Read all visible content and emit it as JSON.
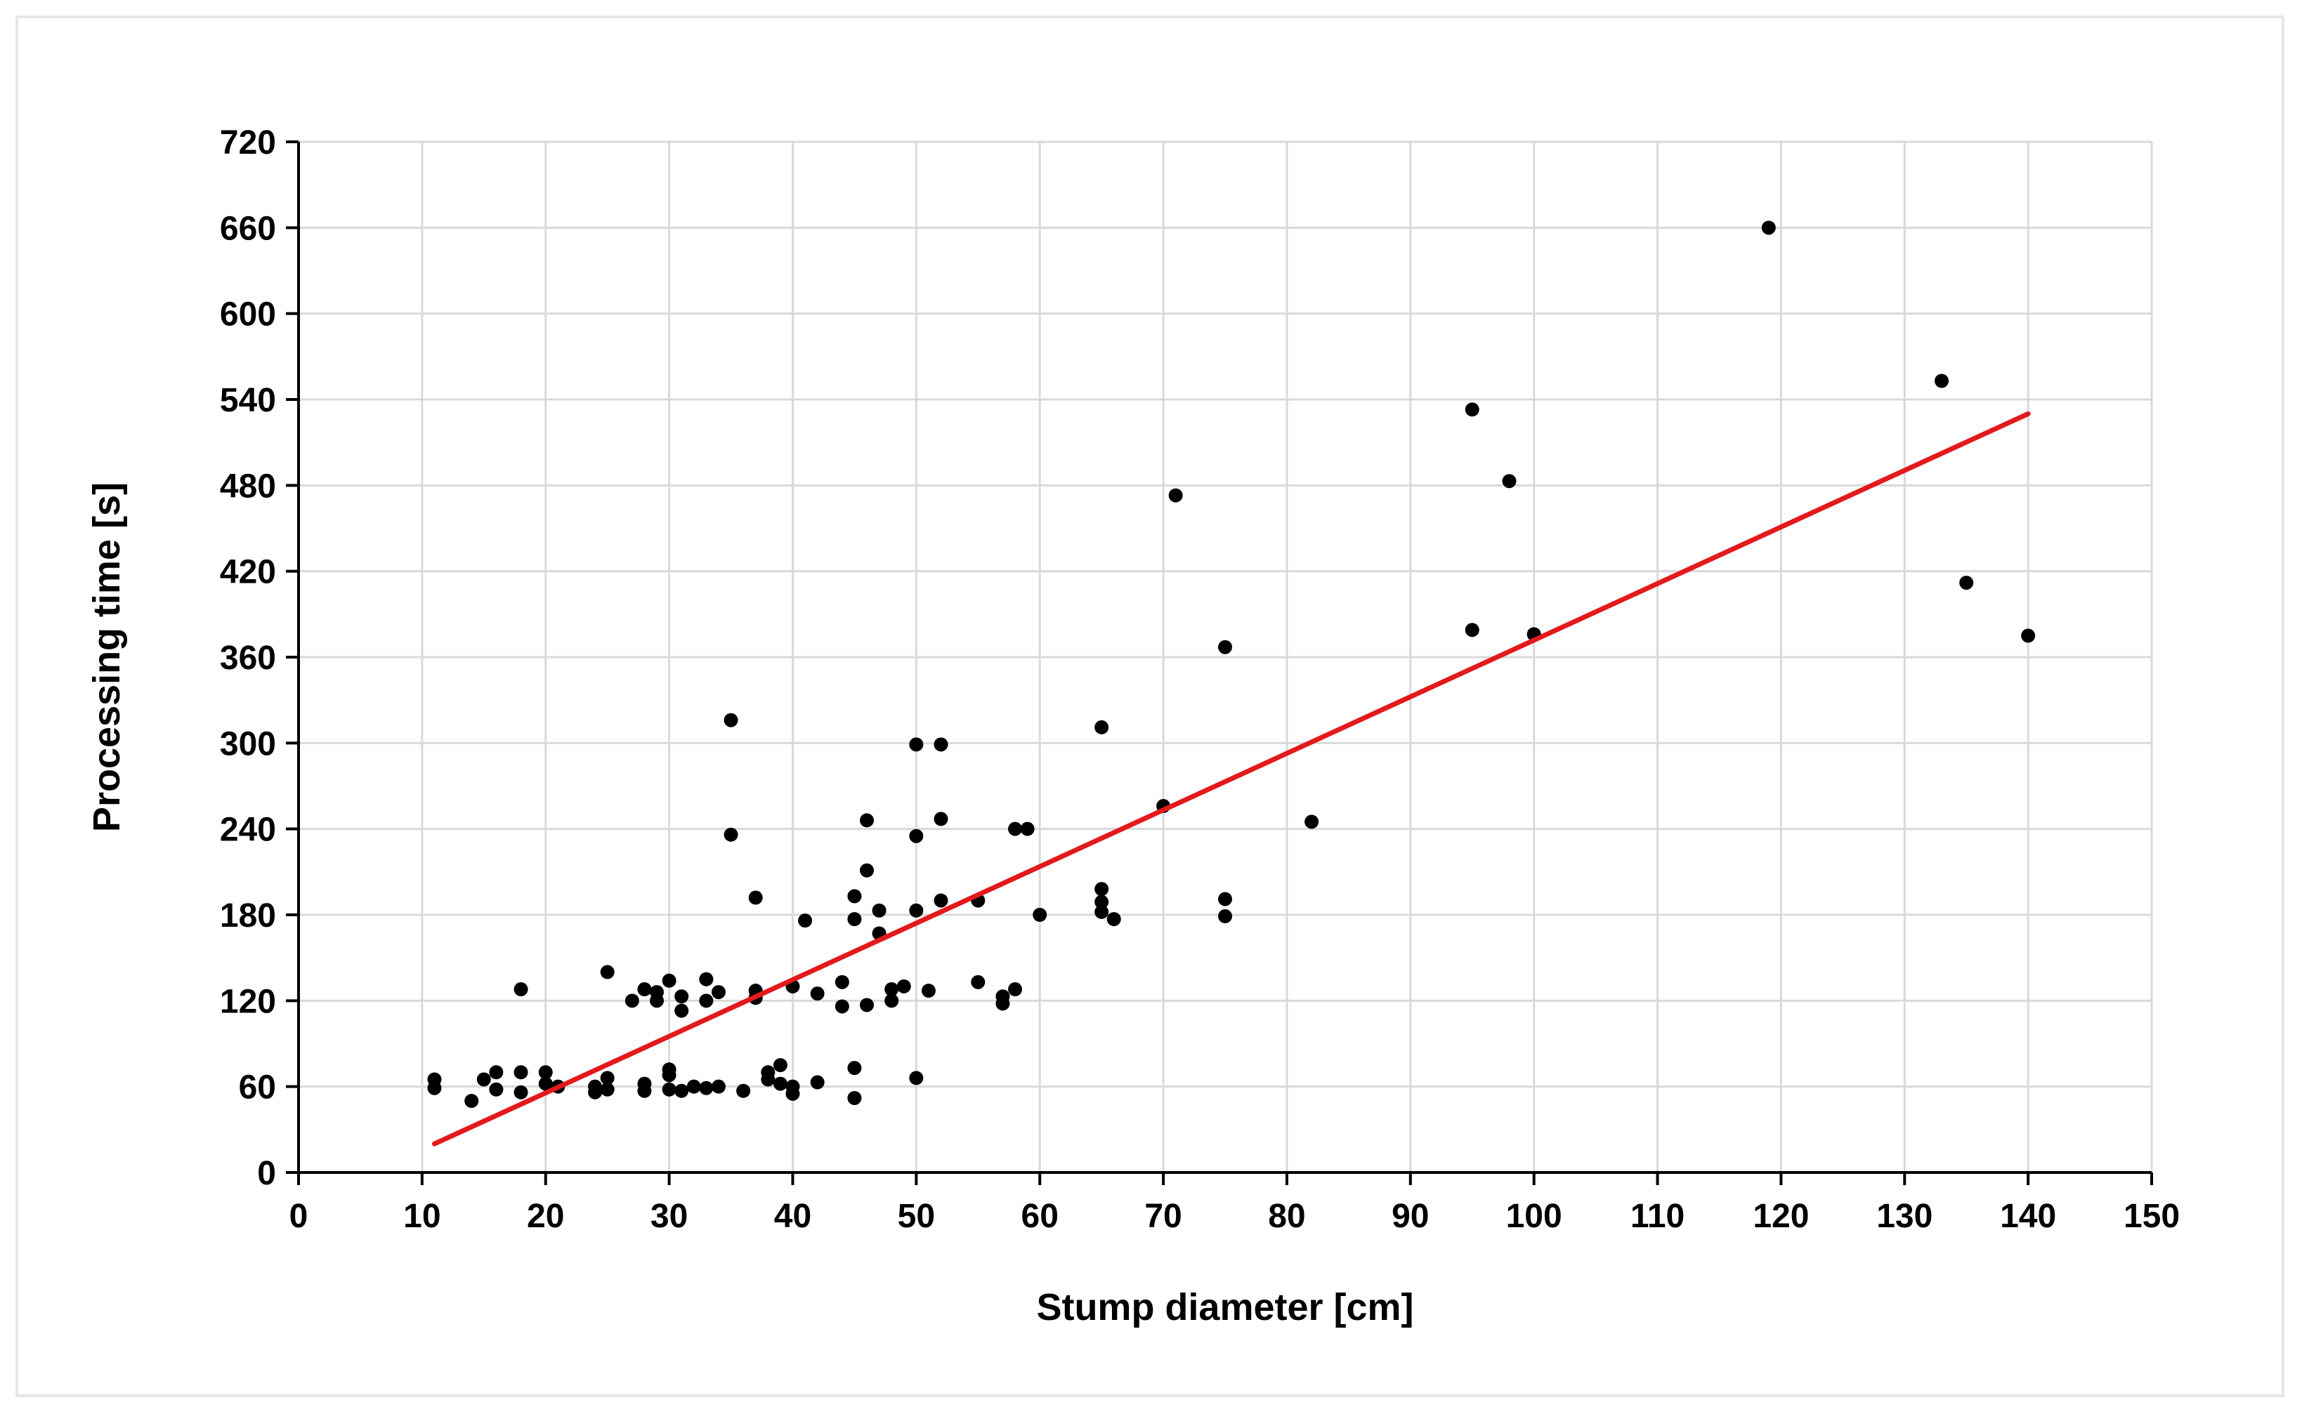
{
  "chart_data": {
    "type": "scatter",
    "title": "",
    "xlabel": "Stump diameter [cm]",
    "ylabel": "Processing time [s]",
    "xlim": [
      0,
      150
    ],
    "ylim": [
      0,
      720
    ],
    "x_ticks": [
      0,
      10,
      20,
      30,
      40,
      50,
      60,
      70,
      80,
      90,
      100,
      110,
      120,
      130,
      140,
      150
    ],
    "y_ticks": [
      0,
      60,
      120,
      180,
      240,
      300,
      360,
      420,
      480,
      540,
      600,
      660,
      720
    ],
    "grid": true,
    "legend": "none",
    "colors": {
      "points": "#000000",
      "trendline": "#e3191c",
      "grid": "#d9d9d9",
      "axis": "#000000"
    },
    "points": [
      [
        11,
        65
      ],
      [
        11,
        59
      ],
      [
        14,
        50
      ],
      [
        15,
        65
      ],
      [
        16,
        70
      ],
      [
        16,
        58
      ],
      [
        18,
        128
      ],
      [
        18,
        70
      ],
      [
        18,
        56
      ],
      [
        20,
        70
      ],
      [
        20,
        62
      ],
      [
        21,
        60
      ],
      [
        24,
        60
      ],
      [
        24,
        56
      ],
      [
        25,
        140
      ],
      [
        25,
        66
      ],
      [
        25,
        58
      ],
      [
        27,
        120
      ],
      [
        28,
        128
      ],
      [
        28,
        62
      ],
      [
        28,
        57
      ],
      [
        29,
        126
      ],
      [
        29,
        120
      ],
      [
        30,
        134
      ],
      [
        30,
        72
      ],
      [
        30,
        68
      ],
      [
        30,
        58
      ],
      [
        31,
        123
      ],
      [
        31,
        113
      ],
      [
        31,
        57
      ],
      [
        32,
        60
      ],
      [
        33,
        135
      ],
      [
        33,
        120
      ],
      [
        33,
        59
      ],
      [
        34,
        126
      ],
      [
        34,
        60
      ],
      [
        35,
        316
      ],
      [
        35,
        236
      ],
      [
        36,
        57
      ],
      [
        37,
        192
      ],
      [
        37,
        127
      ],
      [
        37,
        122
      ],
      [
        38,
        70
      ],
      [
        38,
        65
      ],
      [
        39,
        75
      ],
      [
        39,
        62
      ],
      [
        40,
        130
      ],
      [
        40,
        60
      ],
      [
        40,
        55
      ],
      [
        41,
        176
      ],
      [
        42,
        125
      ],
      [
        42,
        63
      ],
      [
        44,
        133
      ],
      [
        44,
        116
      ],
      [
        45,
        193
      ],
      [
        45,
        177
      ],
      [
        45,
        73
      ],
      [
        45,
        52
      ],
      [
        46,
        246
      ],
      [
        46,
        211
      ],
      [
        46,
        117
      ],
      [
        47,
        183
      ],
      [
        47,
        167
      ],
      [
        48,
        128
      ],
      [
        48,
        120
      ],
      [
        49,
        130
      ],
      [
        50,
        299
      ],
      [
        50,
        235
      ],
      [
        50,
        183
      ],
      [
        50,
        66
      ],
      [
        51,
        127
      ],
      [
        52,
        299
      ],
      [
        52,
        247
      ],
      [
        52,
        190
      ],
      [
        55,
        190
      ],
      [
        55,
        133
      ],
      [
        57,
        123
      ],
      [
        57,
        118
      ],
      [
        58,
        240
      ],
      [
        58,
        128
      ],
      [
        59,
        240
      ],
      [
        60,
        180
      ],
      [
        65,
        311
      ],
      [
        65,
        198
      ],
      [
        65,
        189
      ],
      [
        65,
        182
      ],
      [
        66,
        177
      ],
      [
        70,
        256
      ],
      [
        71,
        473
      ],
      [
        75,
        367
      ],
      [
        75,
        191
      ],
      [
        75,
        179
      ],
      [
        82,
        245
      ],
      [
        95,
        533
      ],
      [
        95,
        379
      ],
      [
        98,
        483
      ],
      [
        100,
        376
      ],
      [
        119,
        660
      ],
      [
        133,
        553
      ],
      [
        135,
        412
      ],
      [
        140,
        375
      ]
    ],
    "trendline": {
      "x": [
        11,
        140
      ],
      "y": [
        20,
        530
      ]
    }
  }
}
